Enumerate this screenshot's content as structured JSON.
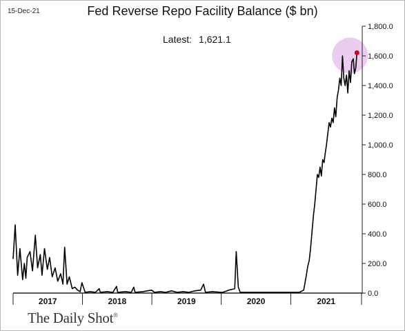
{
  "header": {
    "date": "15-Dec-21",
    "latest_label": "Latest:",
    "latest_value": "1,621.1"
  },
  "brand": {
    "name": "The Daily Shot",
    "mark": "®"
  },
  "chart_data": {
    "type": "line",
    "title": "Fed Reverse Repo Facility Balance ($ bn)",
    "xlabel": "",
    "ylabel": "",
    "ylim": [
      0,
      1800
    ],
    "yticks": [
      0,
      200,
      400,
      600,
      800,
      1000,
      1200,
      1400,
      1600,
      1800
    ],
    "ytick_labels": [
      "0.0",
      "200.0",
      "400.0",
      "600.0",
      "800.0",
      "1,000.0",
      "1,200.0",
      "1,400.0",
      "1,600.0",
      "1,800.0"
    ],
    "x_period_labels": [
      "2017",
      "2018",
      "2019",
      "2020",
      "2021"
    ],
    "x_period_bounds": [
      "2017-01-01",
      "2018-01-01",
      "2019-01-01",
      "2020-01-01",
      "2021-01-01",
      "2022-01-01"
    ],
    "y_axis_side": "right",
    "grid": false,
    "series": [
      {
        "color": "#000000",
        "x": [
          "2017-01-01",
          "2017-01-12",
          "2017-01-25",
          "2017-02-06",
          "2017-02-20",
          "2017-03-01",
          "2017-03-09",
          "2017-03-16",
          "2017-03-31",
          "2017-04-13",
          "2017-04-28",
          "2017-05-10",
          "2017-05-24",
          "2017-06-02",
          "2017-06-15",
          "2017-06-30",
          "2017-07-12",
          "2017-07-26",
          "2017-08-10",
          "2017-08-24",
          "2017-09-08",
          "2017-09-20",
          "2017-09-29",
          "2017-10-12",
          "2017-10-24",
          "2017-11-08",
          "2017-11-22",
          "2017-12-06",
          "2017-12-20",
          "2017-12-29",
          "2018-01-15",
          "2018-02-10",
          "2018-03-10",
          "2018-03-30",
          "2018-04-05",
          "2018-05-10",
          "2018-06-10",
          "2018-06-29",
          "2018-07-05",
          "2018-08-15",
          "2018-09-15",
          "2018-09-28",
          "2018-10-05",
          "2018-11-15",
          "2018-12-31",
          "2019-01-15",
          "2019-02-15",
          "2019-03-15",
          "2019-04-15",
          "2019-05-15",
          "2019-06-15",
          "2019-07-15",
          "2019-08-15",
          "2019-09-15",
          "2019-09-30",
          "2019-10-10",
          "2019-11-15",
          "2019-12-31",
          "2020-01-10",
          "2020-02-10",
          "2020-03-12",
          "2020-03-20",
          "2020-03-31",
          "2020-04-10",
          "2020-04-25",
          "2020-05-15",
          "2020-06-15",
          "2020-07-15",
          "2020-08-15",
          "2020-09-15",
          "2020-10-15",
          "2020-11-15",
          "2020-12-15",
          "2021-01-15",
          "2021-02-15",
          "2021-03-10",
          "2021-03-24",
          "2021-03-31",
          "2021-04-08",
          "2021-04-15",
          "2021-04-22",
          "2021-04-30",
          "2021-05-07",
          "2021-05-14",
          "2021-05-21",
          "2021-05-28",
          "2021-06-04",
          "2021-06-11",
          "2021-06-18",
          "2021-06-25",
          "2021-06-30",
          "2021-07-08",
          "2021-07-15",
          "2021-07-22",
          "2021-07-29",
          "2021-08-05",
          "2021-08-12",
          "2021-08-19",
          "2021-08-26",
          "2021-09-02",
          "2021-09-09",
          "2021-09-16",
          "2021-09-23",
          "2021-09-30",
          "2021-10-07",
          "2021-10-14",
          "2021-10-21",
          "2021-10-28",
          "2021-11-04",
          "2021-11-11",
          "2021-11-18",
          "2021-11-26",
          "2021-12-02",
          "2021-12-09",
          "2021-12-15"
        ],
        "y": [
          230,
          460,
          120,
          300,
          90,
          200,
          100,
          240,
          280,
          150,
          390,
          170,
          260,
          120,
          300,
          160,
          240,
          110,
          170,
          80,
          130,
          60,
          310,
          60,
          110,
          30,
          40,
          20,
          10,
          70,
          5,
          10,
          5,
          30,
          5,
          10,
          5,
          45,
          5,
          10,
          5,
          40,
          5,
          10,
          20,
          5,
          10,
          5,
          15,
          5,
          10,
          5,
          15,
          20,
          60,
          5,
          10,
          5,
          5,
          20,
          30,
          280,
          40,
          5,
          5,
          5,
          5,
          5,
          5,
          5,
          5,
          5,
          5,
          5,
          5,
          20,
          120,
          180,
          220,
          300,
          400,
          520,
          600,
          700,
          800,
          780,
          850,
          790,
          900,
          880,
          930,
          1000,
          1080,
          1150,
          1120,
          1180,
          1150,
          1250,
          1190,
          1320,
          1370,
          1450,
          1400,
          1600,
          1450,
          1400,
          1470,
          1350,
          1500,
          1420,
          1560,
          1580,
          1480,
          1520,
          1621
        ]
      }
    ],
    "annotations": [
      {
        "text": "Latest:  1,621.1",
        "x": "2021-12-15",
        "y": 1621.1
      }
    ]
  }
}
